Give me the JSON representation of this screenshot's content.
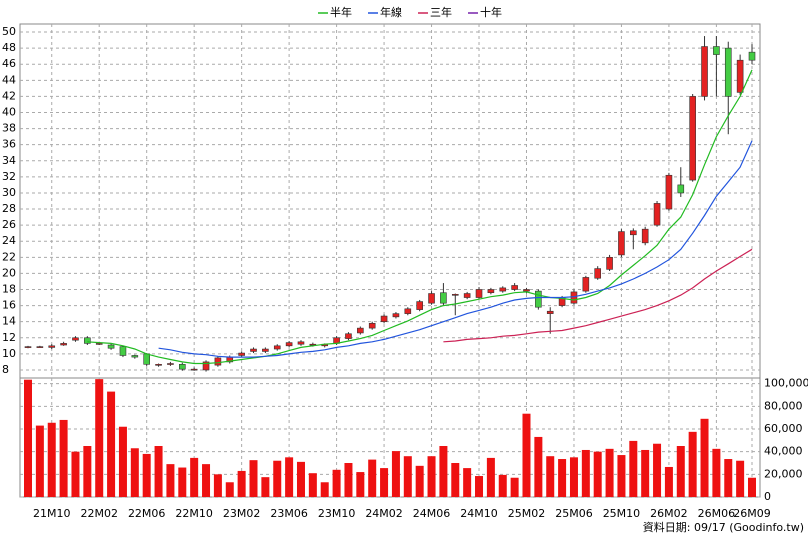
{
  "chart_data": {
    "type": "candlestick",
    "legend": [
      {
        "name": "半年",
        "color": "#22bb22"
      },
      {
        "name": "年線",
        "color": "#2255dd"
      },
      {
        "name": "三年",
        "color": "#cc2255"
      },
      {
        "name": "十年",
        "color": "#7722aa"
      }
    ],
    "categories": [
      null,
      null,
      "21M10",
      null,
      null,
      null,
      "22M02",
      null,
      null,
      null,
      "22M06",
      null,
      null,
      null,
      "22M10",
      null,
      null,
      null,
      "23M02",
      null,
      null,
      null,
      "23M06",
      null,
      null,
      null,
      "23M10",
      null,
      null,
      null,
      "24M02",
      null,
      null,
      null,
      "24M06",
      null,
      null,
      null,
      "24M10",
      null,
      null,
      null,
      "25M02",
      null,
      null,
      null,
      "25M06",
      null,
      null,
      null,
      "25M10",
      null,
      null,
      null,
      "26M02",
      null,
      null,
      null,
      "26M06",
      null,
      null,
      "26M09"
    ],
    "open": [
      10.8,
      10.9,
      10.8,
      11.1,
      11.7,
      12.0,
      11.3,
      11.1,
      10.9,
      9.8,
      10.0,
      8.6,
      8.7,
      8.7,
      8.0,
      8.0,
      8.6,
      9.0,
      9.8,
      10.3,
      10.3,
      10.6,
      11.0,
      11.2,
      11.2,
      11.0,
      11.3,
      11.9,
      12.6,
      13.2,
      14.0,
      14.6,
      15.0,
      15.5,
      16.3,
      17.6,
      17.3,
      17.0,
      17.0,
      17.6,
      17.8,
      18.0,
      17.8,
      17.8,
      15.0,
      16.0,
      16.3,
      17.8,
      19.4,
      20.5,
      22.3,
      24.8,
      23.8,
      26.0,
      28.0,
      31.0,
      31.6,
      42.0,
      48.2,
      48.0,
      42.5,
      47.5
    ],
    "high": [
      11.0,
      11.0,
      11.2,
      11.5,
      12.2,
      12.2,
      11.5,
      11.3,
      11.0,
      9.9,
      10.1,
      8.8,
      9.0,
      8.9,
      8.3,
      9.2,
      9.7,
      9.8,
      10.3,
      10.8,
      10.8,
      11.2,
      11.6,
      11.7,
      11.4,
      11.3,
      12.2,
      12.7,
      13.4,
      14.0,
      14.9,
      15.2,
      15.8,
      16.7,
      17.8,
      18.8,
      17.5,
      17.7,
      18.3,
      18.2,
      18.4,
      18.8,
      18.2,
      18.0,
      15.8,
      17.2,
      18.0,
      19.7,
      20.9,
      22.3,
      25.5,
      25.6,
      25.8,
      29.0,
      32.5,
      33.2,
      42.3,
      49.5,
      49.5,
      48.8,
      47.2,
      48.5
    ],
    "low": [
      10.7,
      10.8,
      10.6,
      11.0,
      11.5,
      11.1,
      11.1,
      10.5,
      9.6,
      9.4,
      8.5,
      8.4,
      8.5,
      7.9,
      7.9,
      7.8,
      8.4,
      8.8,
      9.6,
      10.1,
      10.1,
      10.4,
      10.8,
      11.0,
      10.9,
      10.8,
      11.1,
      11.7,
      12.4,
      13.0,
      13.8,
      14.4,
      14.8,
      15.3,
      16.1,
      16.0,
      14.8,
      16.8,
      16.8,
      17.4,
      17.6,
      17.8,
      17.5,
      15.5,
      12.5,
      15.8,
      16.1,
      17.6,
      19.2,
      20.3,
      22.0,
      23.0,
      23.5,
      25.8,
      27.8,
      29.5,
      31.4,
      41.5,
      42.0,
      37.3,
      42.2,
      46.0
    ],
    "close": [
      10.9,
      10.9,
      11.0,
      11.3,
      12.0,
      11.3,
      11.3,
      10.7,
      9.8,
      9.6,
      8.7,
      8.7,
      8.8,
      8.1,
      8.1,
      9.0,
      9.5,
      9.6,
      10.1,
      10.6,
      10.6,
      11.0,
      11.4,
      11.5,
      11.2,
      11.2,
      12.0,
      12.5,
      13.2,
      13.8,
      14.7,
      15.0,
      15.6,
      16.5,
      17.5,
      16.3,
      17.4,
      17.5,
      18.0,
      18.0,
      18.2,
      18.5,
      18.0,
      15.8,
      15.3,
      17.0,
      17.7,
      19.5,
      20.6,
      22.0,
      25.2,
      25.3,
      25.5,
      28.7,
      32.2,
      30.0,
      42.0,
      48.2,
      47.2,
      42.0,
      46.5,
      46.5
    ],
    "up_color": "#e32222",
    "down_color": "#44cc44",
    "series": [
      {
        "name": "半年",
        "color": "#22bb22",
        "values": [
          null,
          null,
          null,
          null,
          null,
          11.5,
          11.4,
          11.3,
          11.0,
          10.6,
          10.0,
          9.6,
          9.3,
          9.0,
          8.8,
          8.8,
          8.9,
          9.1,
          9.3,
          9.5,
          9.7,
          10.0,
          10.4,
          10.8,
          11.0,
          11.2,
          11.3,
          11.6,
          11.9,
          12.3,
          12.9,
          13.5,
          14.1,
          14.8,
          15.5,
          16.0,
          16.2,
          16.5,
          16.8,
          17.1,
          17.3,
          17.6,
          17.7,
          17.3,
          17.0,
          16.9,
          16.7,
          17.0,
          17.5,
          18.5,
          19.8,
          21.0,
          22.2,
          23.5,
          25.5,
          27.0,
          29.8,
          33.5,
          37.0,
          39.6,
          42.0,
          45.3
        ]
      },
      {
        "name": "年線",
        "color": "#2255dd",
        "values": [
          null,
          null,
          null,
          null,
          null,
          null,
          null,
          null,
          null,
          null,
          null,
          10.7,
          10.5,
          10.2,
          10.0,
          9.9,
          9.7,
          9.6,
          9.6,
          9.6,
          9.7,
          9.8,
          10.0,
          10.2,
          10.3,
          10.5,
          10.8,
          11.0,
          11.3,
          11.5,
          11.8,
          12.2,
          12.6,
          13.0,
          13.5,
          14.0,
          14.5,
          15.0,
          15.4,
          15.8,
          16.3,
          16.7,
          16.9,
          17.0,
          17.0,
          17.0,
          17.1,
          17.4,
          17.8,
          18.2,
          18.7,
          19.3,
          20.0,
          20.8,
          21.7,
          23.0,
          25.0,
          27.2,
          29.6,
          31.4,
          33.2,
          36.5
        ]
      },
      {
        "name": "三年",
        "color": "#cc2255",
        "values": [
          null,
          null,
          null,
          null,
          null,
          null,
          null,
          null,
          null,
          null,
          null,
          null,
          null,
          null,
          null,
          null,
          null,
          null,
          null,
          null,
          null,
          null,
          null,
          null,
          null,
          null,
          null,
          null,
          null,
          null,
          null,
          null,
          null,
          null,
          null,
          11.5,
          11.6,
          11.8,
          11.9,
          12.0,
          12.2,
          12.3,
          12.5,
          12.7,
          12.8,
          12.9,
          13.2,
          13.5,
          13.9,
          14.3,
          14.7,
          15.1,
          15.5,
          16.0,
          16.6,
          17.3,
          18.2,
          19.3,
          20.3,
          21.2,
          22.1,
          23.0
        ]
      }
    ],
    "ylim": [
      7,
      51
    ],
    "yticks": [
      8,
      10,
      12,
      14,
      16,
      18,
      20,
      22,
      24,
      26,
      28,
      30,
      32,
      34,
      36,
      38,
      40,
      42,
      44,
      46,
      48,
      50
    ],
    "volume": {
      "color": "#ee1111",
      "values": [
        103500,
        63000,
        65500,
        68000,
        40000,
        45000,
        104000,
        93000,
        62000,
        43000,
        38000,
        45000,
        29000,
        26000,
        34500,
        29000,
        20000,
        13000,
        23000,
        32500,
        17500,
        32000,
        35000,
        31000,
        21000,
        13000,
        24000,
        30000,
        22000,
        33000,
        25500,
        40500,
        36000,
        27500,
        36000,
        45000,
        30000,
        25500,
        18500,
        34500,
        19500,
        17000,
        73500,
        53000,
        36000,
        33500,
        35000,
        41500,
        40000,
        42500,
        37000,
        49500,
        41500,
        47000,
        26500,
        45000,
        57500,
        69000,
        42500,
        33500,
        32000,
        17000
      ],
      "ylim": [
        0,
        105000
      ],
      "yticks": [
        0,
        {
          "value": 20000,
          "label": "20,000"
        },
        {
          "value": 40000,
          "label": "40,000"
        },
        {
          "value": 60000,
          "label": "60,000"
        },
        {
          "value": 80000,
          "label": "80,000"
        },
        {
          "value": 100000,
          "label": "100,000"
        }
      ]
    },
    "grid": true,
    "footer": "資料日期: 09/17 (Goodinfo.tw)"
  }
}
